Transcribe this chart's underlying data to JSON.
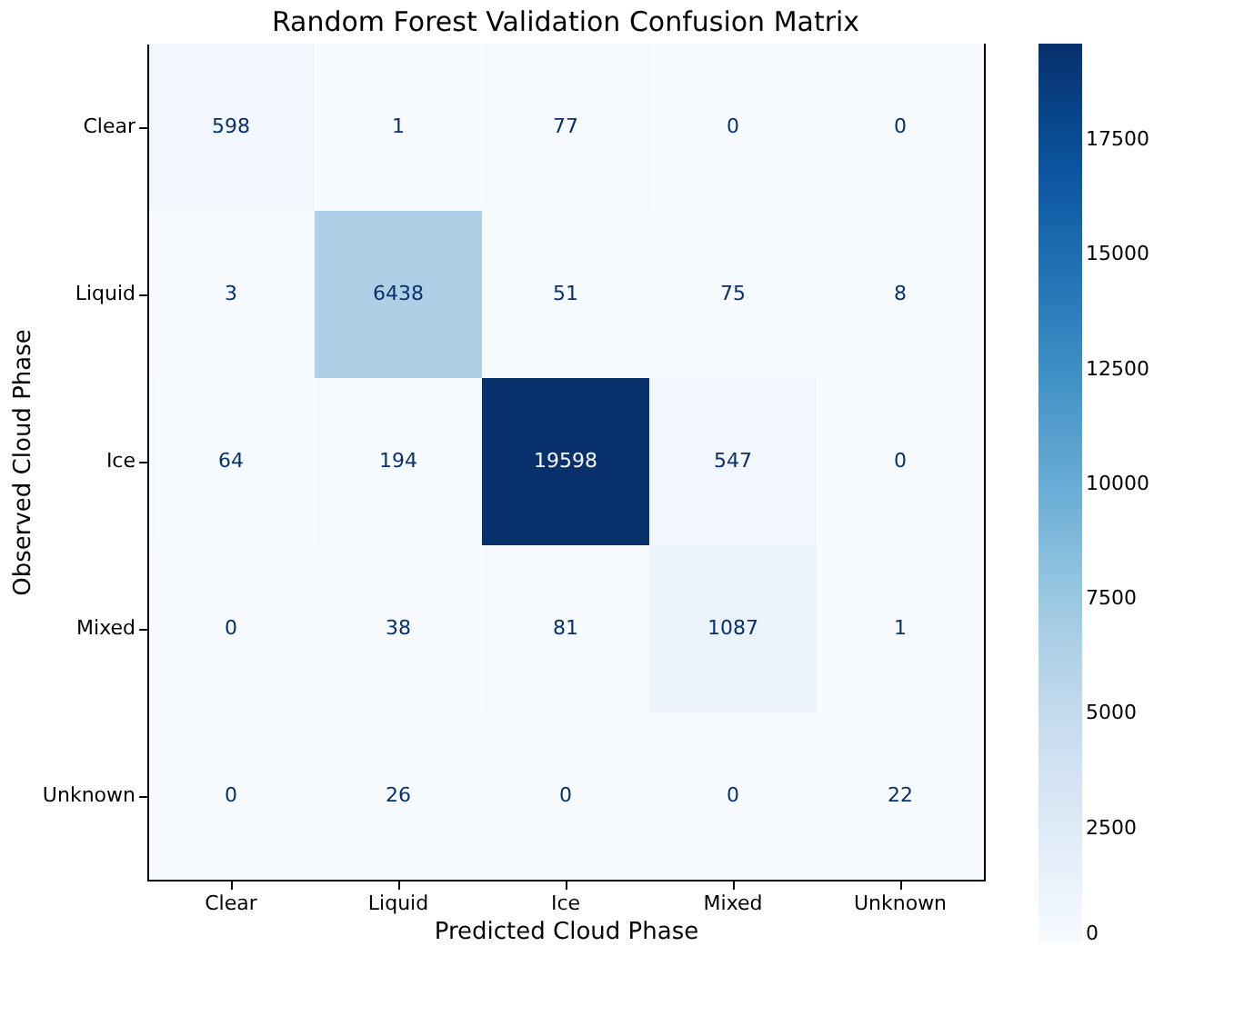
{
  "chart_data": {
    "type": "heatmap",
    "title": "Random Forest Validation Confusion Matrix",
    "xlabel": "Predicted Cloud Phase",
    "ylabel": "Observed Cloud Phase",
    "categories": [
      "Clear",
      "Liquid",
      "Ice",
      "Mixed",
      "Unknown"
    ],
    "y_categories": [
      "Clear",
      "Liquid",
      "Ice",
      "Mixed",
      "Unknown"
    ],
    "cells": [
      [
        598,
        1,
        77,
        0,
        0
      ],
      [
        3,
        6438,
        51,
        75,
        8
      ],
      [
        64,
        194,
        19598,
        547,
        0
      ],
      [
        0,
        38,
        81,
        1087,
        1
      ],
      [
        0,
        26,
        0,
        0,
        22
      ]
    ],
    "clim": [
      0,
      19598
    ],
    "cticks": [
      0,
      2500,
      5000,
      7500,
      10000,
      12500,
      15000,
      17500
    ],
    "data_labels": true
  }
}
